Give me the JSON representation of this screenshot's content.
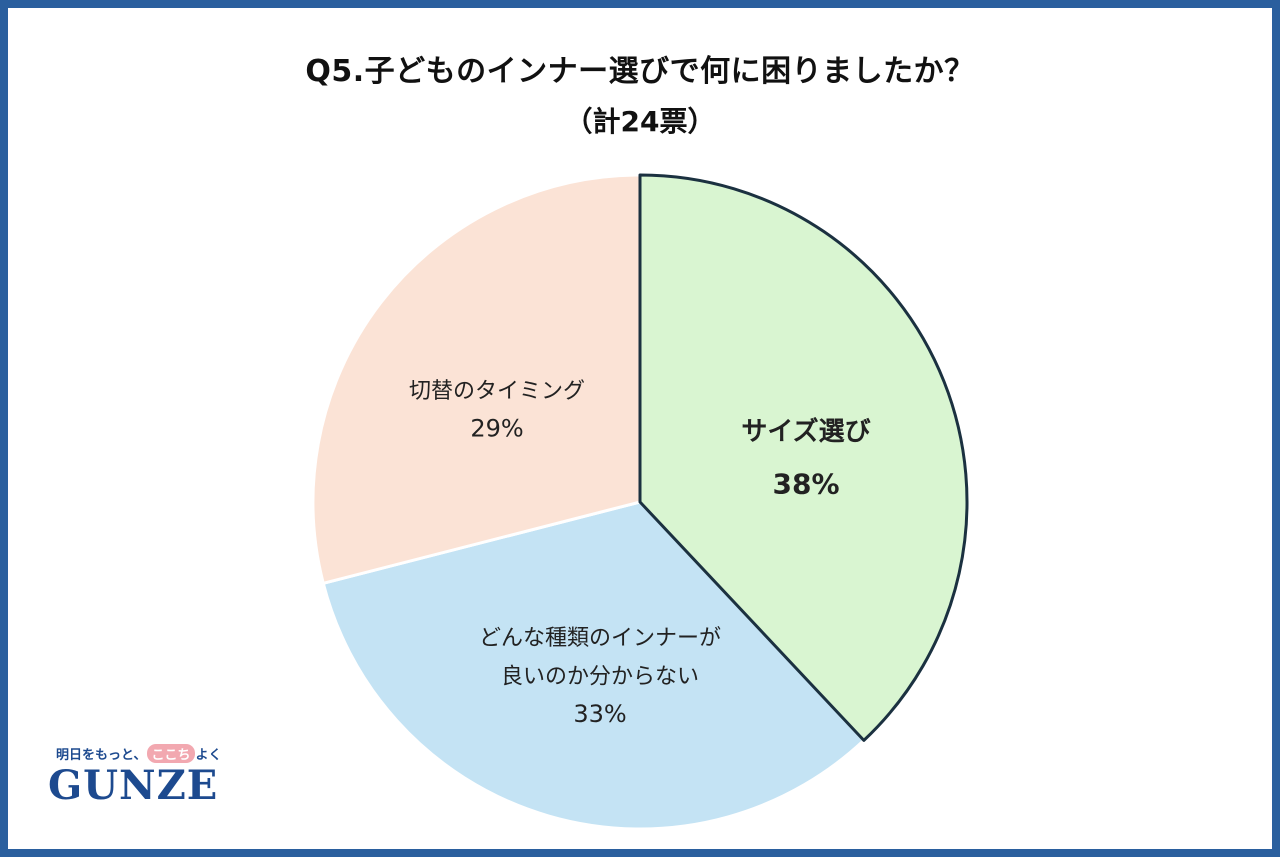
{
  "chart_data": {
    "type": "pie",
    "title": "Q5.子どものインナー選びで何に困りましたか？",
    "subtitle": "（計24票）",
    "slices": [
      {
        "label_lines": [
          "サイズ選び"
        ],
        "percent_label": "38%",
        "value": 38,
        "color": "#d9f5d1",
        "highlight": true
      },
      {
        "label_lines": [
          "どんな種類のインナーが",
          "良いのか分からない"
        ],
        "percent_label": "33%",
        "value": 33,
        "color": "#c4e3f4",
        "highlight": false
      },
      {
        "label_lines": [
          "切替のタイミング"
        ],
        "percent_label": "29%",
        "value": 29,
        "color": "#fbe3d6",
        "highlight": false
      }
    ],
    "start_angle_deg": 0,
    "direction": "clockwise",
    "highlight_stroke": "#1b3140"
  },
  "logo": {
    "tagline_before": "明日をもっと、",
    "tagline_highlight": "ここち",
    "tagline_after": "よく",
    "brand": "GUNZE"
  }
}
